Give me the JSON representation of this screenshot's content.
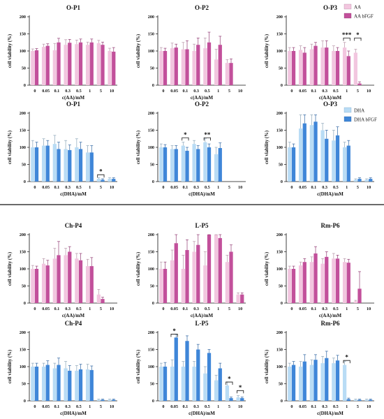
{
  "colors": {
    "aa": "#f2c6df",
    "aa_bfgf": "#c2509b",
    "dha": "#b9dcf5",
    "dha_bfgf": "#3f86d8"
  },
  "legend_aa": [
    "AA",
    "AA   bFGF"
  ],
  "legend_dha": [
    "DHA",
    "DHA   bFGF"
  ],
  "chart_data": [
    {
      "type": "bar",
      "title": "O-P1",
      "xlabel": "c(AA)/mM",
      "ylabel": "cell viability (%)",
      "ylim": [
        0,
        200
      ],
      "yticks": [
        0,
        50,
        100,
        150,
        200
      ],
      "categories": [
        "0",
        "0.05",
        "0.1",
        "0.3",
        "0.5",
        "1",
        "5",
        "10"
      ],
      "series": [
        {
          "name": "AA",
          "color": "#f2c6df",
          "values": [
            100,
            112,
            102,
            118,
            120,
            118,
            123,
            100
          ],
          "errors": [
            6,
            8,
            20,
            15,
            12,
            8,
            8,
            8
          ]
        },
        {
          "name": "AA   bFGF",
          "color": "#c2509b",
          "values": [
            102,
            115,
            125,
            124,
            125,
            125,
            118,
            98
          ],
          "errors": [
            5,
            6,
            12,
            10,
            10,
            10,
            8,
            12
          ]
        }
      ],
      "annotations": []
    },
    {
      "type": "bar",
      "title": "O-P2",
      "xlabel": "c(AA)/mM",
      "ylabel": "cell viability (%)",
      "ylim": [
        0,
        200
      ],
      "yticks": [
        0,
        50,
        100,
        150,
        200
      ],
      "categories": [
        "0",
        "0.05",
        "0.1",
        "0.3",
        "0.5",
        "1",
        "5",
        "10"
      ],
      "series": [
        {
          "name": "AA",
          "color": "#f2c6df",
          "values": [
            100,
            108,
            105,
            100,
            108,
            75,
            65,
            0
          ],
          "errors": [
            10,
            15,
            20,
            20,
            30,
            30,
            10,
            0
          ]
        },
        {
          "name": "AA   bFGF",
          "color": "#c2509b",
          "values": [
            100,
            110,
            105,
            118,
            125,
            118,
            65,
            0
          ],
          "errors": [
            8,
            10,
            25,
            20,
            30,
            25,
            12,
            0
          ]
        }
      ],
      "annotations": []
    },
    {
      "type": "bar",
      "title": "O-P3",
      "xlabel": "c(AA)/mM",
      "ylabel": "cell viability (%)",
      "ylim": [
        0,
        200
      ],
      "yticks": [
        0,
        50,
        100,
        150,
        200
      ],
      "categories": [
        "0",
        "0.05",
        "0.1",
        "0.3",
        "0.5",
        "1",
        "5",
        "10"
      ],
      "series": [
        {
          "name": "AA",
          "color": "#f2c6df",
          "values": [
            100,
            103,
            105,
            110,
            100,
            110,
            95,
            0
          ],
          "errors": [
            10,
            12,
            15,
            20,
            15,
            15,
            10,
            0
          ]
        },
        {
          "name": "AA   bFGF",
          "color": "#c2509b",
          "values": [
            100,
            95,
            115,
            110,
            100,
            85,
            5,
            0
          ],
          "errors": [
            10,
            15,
            10,
            20,
            10,
            15,
            5,
            0
          ]
        }
      ],
      "annotations": [
        {
          "label": "***",
          "from": 5,
          "to": 5,
          "y": 138
        },
        {
          "label": "*",
          "from": 6,
          "to": 6,
          "y": 138
        }
      ]
    },
    {
      "type": "bar",
      "title": "O-P1",
      "xlabel": "c(DHA)/mM",
      "ylabel": "cell viability (%)",
      "ylim": [
        0,
        200
      ],
      "yticks": [
        0,
        50,
        100,
        150,
        200
      ],
      "categories": [
        "0",
        "0.05",
        "0.1",
        "0.3",
        "0.5",
        "1",
        "5",
        "10"
      ],
      "series": [
        {
          "name": "DHA",
          "color": "#b9dcf5",
          "values": [
            100,
            105,
            110,
            95,
            100,
            85,
            8,
            8
          ],
          "errors": [
            20,
            20,
            25,
            25,
            25,
            20,
            3,
            3
          ]
        },
        {
          "name": "DHA   bFGF",
          "color": "#3f86d8",
          "values": [
            100,
            105,
            95,
            92,
            95,
            85,
            5,
            8
          ],
          "errors": [
            15,
            15,
            20,
            15,
            20,
            20,
            3,
            3
          ]
        }
      ],
      "annotations": [
        {
          "label": "*",
          "from": 6,
          "to": 6,
          "y": 20
        }
      ]
    },
    {
      "type": "bar",
      "title": "O-P2",
      "xlabel": "c(DHA)/mM",
      "ylabel": "cell viability (%)",
      "ylim": [
        0,
        200
      ],
      "yticks": [
        0,
        50,
        100,
        150,
        200
      ],
      "categories": [
        "0",
        "0.05",
        "0.1",
        "0.3",
        "0.5",
        "1",
        "5",
        "10"
      ],
      "series": [
        {
          "name": "DHA",
          "color": "#b9dcf5",
          "values": [
            100,
            95,
            105,
            110,
            115,
            80,
            0,
            0
          ],
          "errors": [
            10,
            10,
            10,
            10,
            10,
            20,
            0,
            0
          ]
        },
        {
          "name": "DHA   bFGF",
          "color": "#3f86d8",
          "values": [
            100,
            95,
            90,
            95,
            100,
            98,
            0,
            0
          ],
          "errors": [
            8,
            10,
            10,
            10,
            10,
            15,
            0,
            0
          ]
        }
      ],
      "annotations": [
        {
          "label": "*",
          "from": 2,
          "to": 2,
          "y": 128
        },
        {
          "label": "**",
          "from": 4,
          "to": 4,
          "y": 128
        }
      ]
    },
    {
      "type": "bar",
      "title": "O-P3",
      "xlabel": "c(DHA)/mM",
      "ylabel": "cell viability (%)",
      "ylim": [
        0,
        200
      ],
      "yticks": [
        0,
        50,
        100,
        150,
        200
      ],
      "categories": [
        "0",
        "0.05",
        "0.1",
        "0.3",
        "0.5",
        "1",
        "5",
        "10"
      ],
      "series": [
        {
          "name": "DHA",
          "color": "#b9dcf5",
          "values": [
            100,
            155,
            165,
            150,
            120,
            100,
            5,
            5
          ],
          "errors": [
            15,
            40,
            30,
            20,
            30,
            15,
            3,
            3
          ]
        },
        {
          "name": "DHA   bFGF",
          "color": "#3f86d8",
          "values": [
            100,
            170,
            175,
            125,
            135,
            105,
            8,
            8
          ],
          "errors": [
            10,
            25,
            20,
            25,
            25,
            15,
            3,
            3
          ]
        }
      ],
      "annotations": []
    },
    {
      "type": "bar",
      "title": "Ch-P4",
      "xlabel": "c(AA)/mM",
      "ylabel": "cell viability (%)",
      "ylim": [
        0,
        200
      ],
      "yticks": [
        0,
        50,
        100,
        150,
        200
      ],
      "categories": [
        "0",
        "0.05",
        "0.1",
        "0.3",
        "0.5",
        "1",
        "5",
        "10"
      ],
      "series": [
        {
          "name": "AA",
          "color": "#f2c6df",
          "values": [
            100,
            115,
            130,
            140,
            130,
            108,
            25,
            0
          ],
          "errors": [
            10,
            15,
            30,
            20,
            15,
            20,
            15,
            0
          ]
        },
        {
          "name": "AA   bFGF",
          "color": "#c2509b",
          "values": [
            100,
            110,
            140,
            150,
            125,
            108,
            12,
            0
          ],
          "errors": [
            8,
            15,
            40,
            15,
            20,
            25,
            5,
            0
          ]
        }
      ],
      "annotations": []
    },
    {
      "type": "bar",
      "title": "L-P5",
      "xlabel": "c(AA)/mM",
      "ylabel": "cell viability (%)",
      "ylim": [
        0,
        200
      ],
      "yticks": [
        0,
        50,
        100,
        150,
        200
      ],
      "categories": [
        "0",
        "0.05",
        "0.1",
        "0.3",
        "0.5",
        "1",
        "5",
        "10"
      ],
      "series": [
        {
          "name": "AA",
          "color": "#f2c6df",
          "values": [
            100,
            125,
            100,
            150,
            110,
            200,
            120,
            25
          ],
          "errors": [
            20,
            30,
            40,
            30,
            40,
            30,
            20,
            5
          ]
        },
        {
          "name": "AA   bFGF",
          "color": "#c2509b",
          "values": [
            100,
            175,
            155,
            170,
            200,
            190,
            150,
            25
          ],
          "errors": [
            20,
            30,
            30,
            30,
            30,
            20,
            20,
            5
          ]
        }
      ],
      "annotations": []
    },
    {
      "type": "bar",
      "title": "Rm-P6",
      "xlabel": "c(AA)/mM",
      "ylabel": "cell viability (%)",
      "ylim": [
        0,
        200
      ],
      "yticks": [
        0,
        50,
        100,
        150,
        200
      ],
      "categories": [
        "0",
        "0.05",
        "0.1",
        "0.3",
        "0.5",
        "1",
        "5",
        "10"
      ],
      "series": [
        {
          "name": "AA",
          "color": "#f2c6df",
          "values": [
            100,
            110,
            120,
            115,
            130,
            120,
            5,
            0
          ],
          "errors": [
            8,
            10,
            15,
            15,
            15,
            10,
            3,
            0
          ]
        },
        {
          "name": "AA   bFGF",
          "color": "#c2509b",
          "values": [
            100,
            120,
            145,
            135,
            130,
            118,
            42,
            0
          ],
          "errors": [
            8,
            10,
            20,
            15,
            10,
            10,
            50,
            0
          ]
        }
      ],
      "annotations": []
    },
    {
      "type": "bar",
      "title": "Ch-P4",
      "xlabel": "c(DHA)/mM",
      "ylabel": "cell viability (%)",
      "ylim": [
        0,
        200
      ],
      "yticks": [
        0,
        50,
        100,
        150,
        200
      ],
      "categories": [
        "0",
        "0.05",
        "0.1",
        "0.3",
        "0.5",
        "1",
        "5",
        "10"
      ],
      "series": [
        {
          "name": "DHA",
          "color": "#b9dcf5",
          "values": [
            100,
            100,
            95,
            95,
            88,
            92,
            3,
            3
          ],
          "errors": [
            10,
            10,
            15,
            20,
            15,
            15,
            2,
            2
          ]
        },
        {
          "name": "DHA   bFGF",
          "color": "#3f86d8",
          "values": [
            100,
            105,
            105,
            88,
            92,
            90,
            3,
            3
          ],
          "errors": [
            10,
            12,
            20,
            15,
            15,
            12,
            2,
            2
          ]
        }
      ],
      "annotations": []
    },
    {
      "type": "bar",
      "title": "L-P5",
      "xlabel": "c(DHA)/mM",
      "ylabel": "cell viability (%)",
      "ylim": [
        0,
        200
      ],
      "yticks": [
        0,
        50,
        100,
        150,
        200
      ],
      "categories": [
        "0",
        "0.05",
        "0.1",
        "0.3",
        "0.5",
        "1",
        "5",
        "10"
      ],
      "series": [
        {
          "name": "DHA",
          "color": "#b9dcf5",
          "values": [
            100,
            100,
            100,
            100,
            80,
            60,
            45,
            10
          ],
          "errors": [
            10,
            20,
            15,
            15,
            20,
            15,
            10,
            5
          ]
        },
        {
          "name": "DHA   bFGF",
          "color": "#3f86d8",
          "values": [
            100,
            185,
            175,
            150,
            140,
            95,
            8,
            8
          ],
          "errors": [
            12,
            10,
            15,
            15,
            10,
            15,
            3,
            3
          ]
        }
      ],
      "annotations": [
        {
          "label": "*",
          "from": 1,
          "to": 1,
          "y": 195
        },
        {
          "label": "*",
          "from": 6,
          "to": 6,
          "y": 55
        },
        {
          "label": "*",
          "from": 7,
          "to": 7,
          "y": 30
        }
      ]
    },
    {
      "type": "bar",
      "title": "Rm-P6",
      "xlabel": "c(DHA)/mM",
      "ylabel": "cell viability (%)",
      "ylim": [
        0,
        200
      ],
      "yticks": [
        0,
        50,
        100,
        150,
        200
      ],
      "categories": [
        "0",
        "0.05",
        "0.1",
        "0.3",
        "0.5",
        "1",
        "5",
        "10"
      ],
      "series": [
        {
          "name": "DHA",
          "color": "#b9dcf5",
          "values": [
            100,
            100,
            105,
            110,
            110,
            105,
            3,
            3
          ],
          "errors": [
            10,
            15,
            15,
            20,
            15,
            10,
            2,
            2
          ]
        },
        {
          "name": "DHA   bFGF",
          "color": "#3f86d8",
          "values": [
            105,
            115,
            120,
            125,
            118,
            5,
            3,
            3
          ],
          "errors": [
            10,
            20,
            15,
            20,
            15,
            3,
            2,
            2
          ]
        }
      ],
      "annotations": [
        {
          "label": "*",
          "from": 5,
          "to": 5,
          "y": 118
        }
      ]
    }
  ]
}
